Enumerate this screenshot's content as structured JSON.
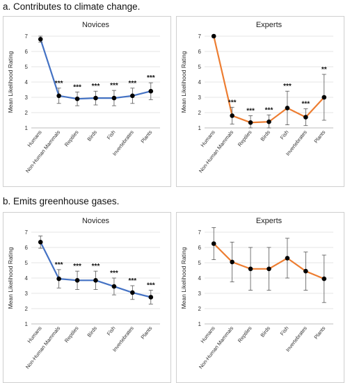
{
  "sections": [
    {
      "label": "a. Contributes to climate change."
    },
    {
      "label": "b. Emits greenhouse gases."
    }
  ],
  "colors": {
    "novices": "#4472C4",
    "experts": "#ED7D31",
    "point": "#000000"
  },
  "chart_data": [
    {
      "type": "line",
      "title": "Novices",
      "ylabel": "Mean Likelihood Rating",
      "ylim": [
        1,
        7
      ],
      "yticks": [
        1,
        2,
        3,
        4,
        5,
        6,
        7
      ],
      "categories": [
        "Humans",
        "Non-Human Mammals",
        "Reptiles",
        "Birds",
        "Fish",
        "Invertebrates",
        "Plants"
      ],
      "values": [
        6.8,
        3.1,
        2.9,
        2.95,
        2.95,
        3.1,
        3.4
      ],
      "err": [
        0.2,
        0.5,
        0.45,
        0.45,
        0.5,
        0.5,
        0.55
      ],
      "annotations": [
        "",
        "***",
        "***",
        "***",
        "***",
        "***",
        "***"
      ],
      "color": "#4472C4",
      "grid": true
    },
    {
      "type": "line",
      "title": "Experts",
      "ylabel": "Mean Likelihood Rating",
      "ylim": [
        1,
        7
      ],
      "yticks": [
        1,
        2,
        3,
        4,
        5,
        6,
        7
      ],
      "categories": [
        "Humans",
        "Non-Human Mammals",
        "Reptiles",
        "Birds",
        "Fish",
        "Invertebrates",
        "Plants"
      ],
      "values": [
        7.0,
        1.8,
        1.35,
        1.4,
        2.3,
        1.7,
        3.0
      ],
      "err": [
        0,
        0.55,
        0.45,
        0.45,
        1.1,
        0.55,
        1.5
      ],
      "annotations": [
        "",
        "***",
        "***",
        "***",
        "***",
        "***",
        "**"
      ],
      "color": "#ED7D31",
      "grid": true
    },
    {
      "type": "line",
      "title": "Novices",
      "ylabel": "Mean Likelihood Rating",
      "ylim": [
        1,
        7
      ],
      "yticks": [
        1,
        2,
        3,
        4,
        5,
        6,
        7
      ],
      "categories": [
        "Humans",
        "Non-Human Mammals",
        "Reptiles",
        "Birds",
        "Fish",
        "Invertebrates",
        "Plants"
      ],
      "values": [
        6.35,
        3.95,
        3.85,
        3.85,
        3.45,
        3.05,
        2.75
      ],
      "err": [
        0.4,
        0.6,
        0.6,
        0.6,
        0.55,
        0.45,
        0.45
      ],
      "annotations": [
        "",
        "***",
        "***",
        "***",
        "***",
        "***",
        "***"
      ],
      "color": "#4472C4",
      "grid": true
    },
    {
      "type": "line",
      "title": "Experts",
      "ylabel": "Mean Likelihood Rating",
      "ylim": [
        1,
        7
      ],
      "yticks": [
        1,
        2,
        3,
        4,
        5,
        6,
        7
      ],
      "categories": [
        "Humans",
        "Non-Human Mammals",
        "Reptiles",
        "Birds",
        "Fish",
        "Invertebrates",
        "Plants"
      ],
      "values": [
        6.25,
        5.05,
        4.6,
        4.6,
        5.3,
        4.45,
        3.95
      ],
      "err": [
        1.05,
        1.3,
        1.4,
        1.4,
        1.3,
        1.25,
        1.55
      ],
      "annotations": [
        "",
        "",
        "",
        "",
        "",
        "",
        ""
      ],
      "color": "#ED7D31",
      "grid": true
    }
  ]
}
